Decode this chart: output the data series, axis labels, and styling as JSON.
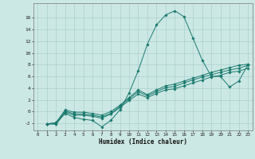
{
  "title": "",
  "xlabel": "Humidex (Indice chaleur)",
  "ylabel": "",
  "bg_color": "#cce8e4",
  "grid_color": "#aad0cc",
  "line_color": "#1a7a6e",
  "xlim": [
    -0.5,
    23.5
  ],
  "ylim": [
    -3.2,
    18.5
  ],
  "yticks": [
    -2,
    0,
    2,
    4,
    6,
    8,
    10,
    12,
    14,
    16
  ],
  "xticks": [
    0,
    1,
    2,
    3,
    4,
    5,
    6,
    7,
    8,
    9,
    10,
    11,
    12,
    13,
    14,
    15,
    16,
    17,
    18,
    19,
    20,
    21,
    22,
    23
  ],
  "xtick_labels": [
    "0",
    "1",
    "2",
    "3",
    "4",
    "5",
    "6",
    "7",
    "8",
    "9",
    "10",
    "11",
    "12",
    "13",
    "14",
    "15",
    "16",
    "17",
    "18",
    "19",
    "20",
    "21",
    "22",
    "23"
  ],
  "series": [
    [
      null,
      -2.1,
      -2.1,
      -0.3,
      -1.0,
      -1.3,
      -1.5,
      -2.6,
      -1.5,
      0.3,
      3.2,
      7.0,
      11.5,
      14.8,
      16.5,
      17.2,
      16.2,
      12.5,
      8.8,
      6.0,
      6.0,
      4.2,
      5.2,
      8.0
    ],
    [
      null,
      -2.1,
      -2.1,
      -0.1,
      -0.6,
      -0.6,
      -0.8,
      -1.1,
      -0.4,
      0.7,
      1.9,
      3.0,
      2.4,
      3.1,
      3.7,
      3.9,
      4.4,
      4.9,
      5.4,
      5.9,
      6.2,
      6.7,
      6.9,
      7.4
    ],
    [
      null,
      -2.1,
      -1.9,
      0.1,
      -0.4,
      -0.4,
      -0.6,
      -0.9,
      -0.3,
      0.9,
      2.2,
      3.4,
      2.7,
      3.4,
      4.1,
      4.3,
      4.9,
      5.4,
      5.9,
      6.3,
      6.7,
      7.1,
      7.4,
      7.9
    ],
    [
      null,
      -2.1,
      -1.9,
      0.3,
      -0.1,
      -0.1,
      -0.3,
      -0.6,
      0.0,
      1.1,
      2.4,
      3.7,
      2.9,
      3.7,
      4.4,
      4.7,
      5.2,
      5.7,
      6.2,
      6.7,
      7.1,
      7.5,
      7.9,
      8.1
    ]
  ]
}
